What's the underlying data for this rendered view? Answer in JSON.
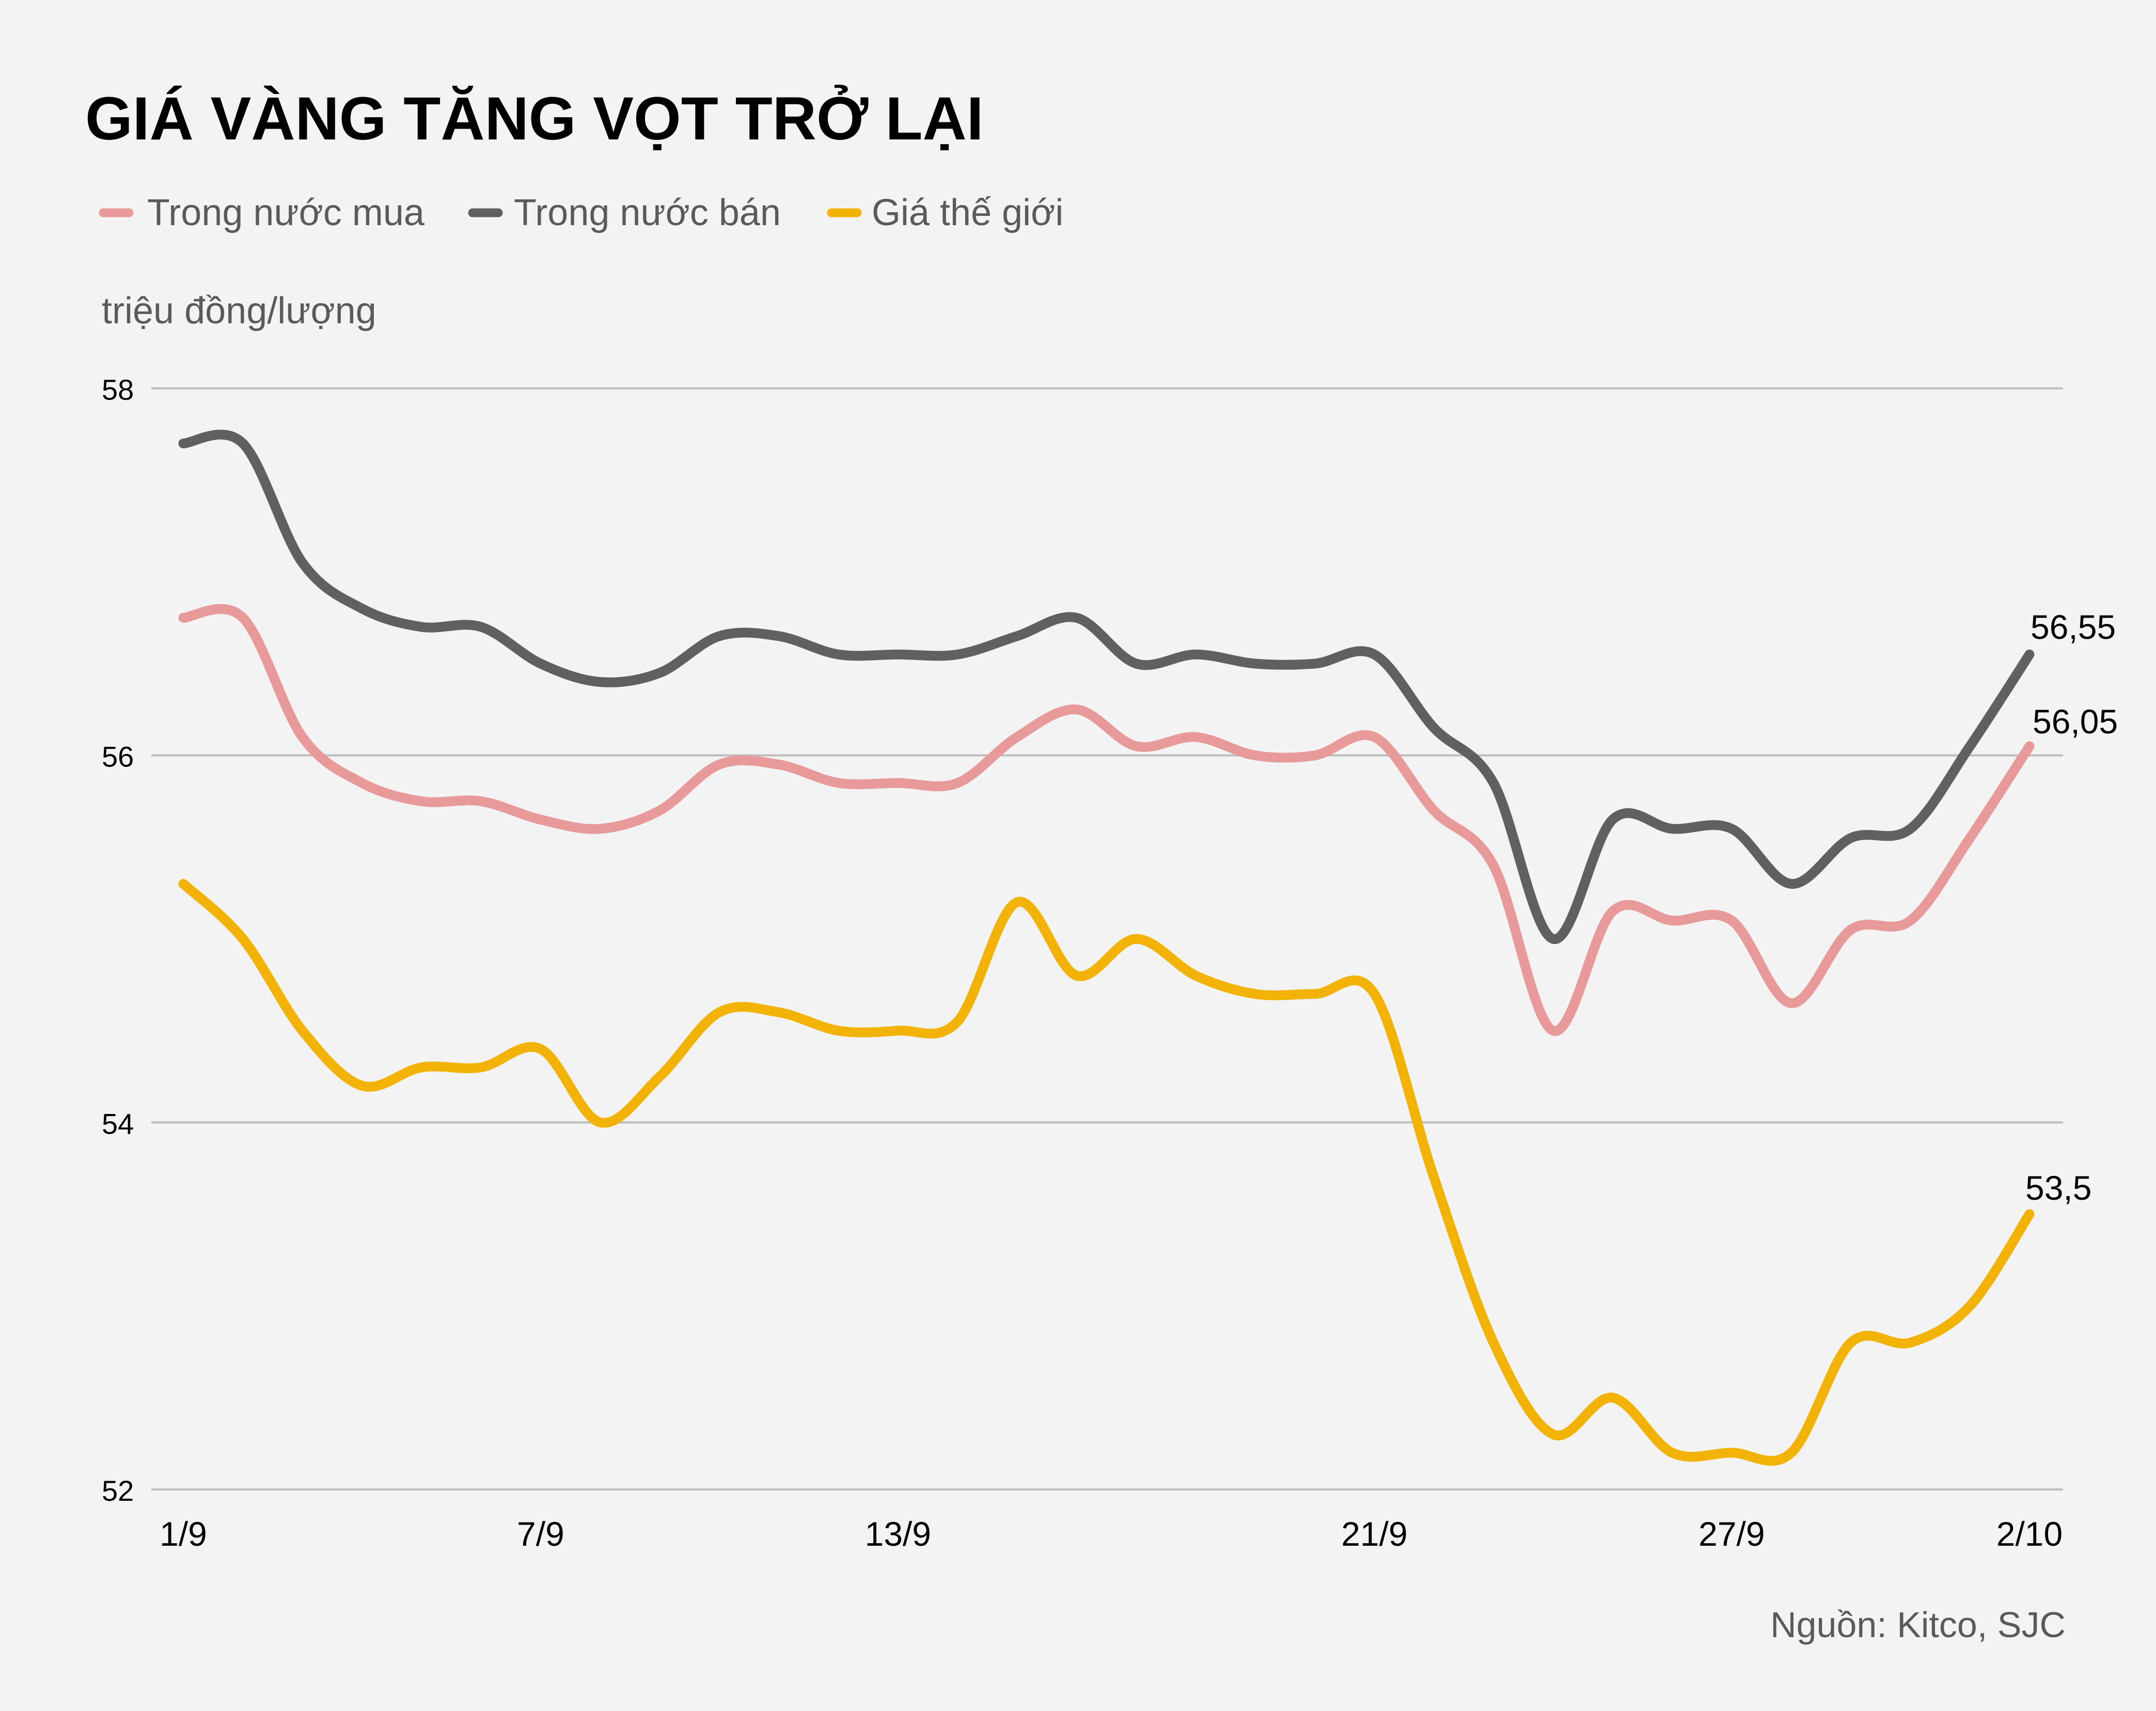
{
  "chart_data": {
    "type": "line",
    "title": "GIÁ VÀNG TĂNG VỌT TRỞ LẠI",
    "ylabel": "triệu đồng/lượng",
    "source": "Nguồn: Kitco, SJC",
    "ylim": [
      52,
      58
    ],
    "yticks": [
      {
        "value": 58,
        "label": "58"
      },
      {
        "value": 56,
        "label": "56"
      },
      {
        "value": 54,
        "label": "54"
      },
      {
        "value": 52,
        "label": "52"
      }
    ],
    "xticks": [
      {
        "index": 0,
        "label": "1/9"
      },
      {
        "index": 6,
        "label": "7/9"
      },
      {
        "index": 12,
        "label": "13/9"
      },
      {
        "index": 20,
        "label": "21/9"
      },
      {
        "index": 26,
        "label": "27/9"
      },
      {
        "index": 31,
        "label": "2/10"
      }
    ],
    "grid": true,
    "legend_position": "top-left",
    "series": [
      {
        "name": "Trong nước mua",
        "color": "#e89a9b",
        "values": [
          56.75,
          56.75,
          56.1,
          55.85,
          55.75,
          55.75,
          55.65,
          55.6,
          55.7,
          55.95,
          55.95,
          55.85,
          55.85,
          55.85,
          56.1,
          56.25,
          56.05,
          56.1,
          56.0,
          56.0,
          56.1,
          55.7,
          55.4,
          54.5,
          55.15,
          55.1,
          55.1,
          54.65,
          55.05,
          55.1,
          55.55,
          56.05
        ],
        "end_label": "56,05"
      },
      {
        "name": "Trong nước bán",
        "color": "#606060",
        "values": [
          57.7,
          57.7,
          57.05,
          56.8,
          56.7,
          56.7,
          56.5,
          56.4,
          56.45,
          56.65,
          56.65,
          56.55,
          56.55,
          56.55,
          56.65,
          56.75,
          56.5,
          56.55,
          56.5,
          56.5,
          56.55,
          56.15,
          55.85,
          55.0,
          55.65,
          55.6,
          55.6,
          55.3,
          55.55,
          55.6,
          56.05,
          56.55
        ],
        "end_label": "56,55"
      },
      {
        "name": "Giá thế giới",
        "color": "#f2b306",
        "values": [
          55.3,
          55.0,
          54.5,
          54.2,
          54.3,
          54.3,
          54.4,
          54.0,
          54.25,
          54.6,
          54.6,
          54.5,
          54.5,
          54.55,
          55.2,
          54.8,
          55.0,
          54.8,
          54.7,
          54.7,
          54.7,
          53.7,
          52.8,
          52.3,
          52.5,
          52.2,
          52.2,
          52.2,
          52.8,
          52.8,
          53.0,
          53.5
        ],
        "end_label": "53,5"
      }
    ]
  }
}
